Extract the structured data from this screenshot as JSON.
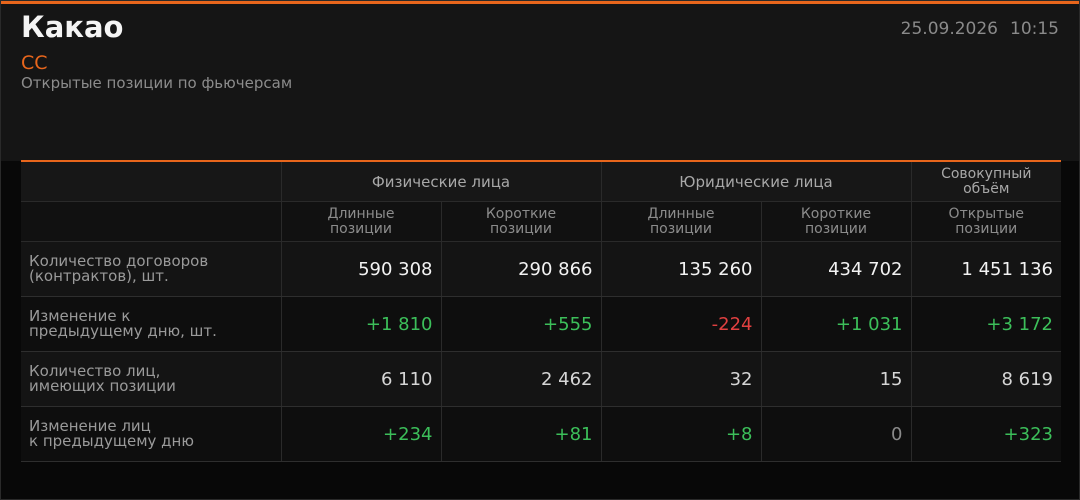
{
  "header": {
    "title": "Какао",
    "code": "CC",
    "subtitle": "Открытые позиции по фьючерсам",
    "date": "25.09.2026",
    "time": "10:15"
  },
  "table": {
    "groups": [
      {
        "label": [
          "Физические лица"
        ],
        "span": 2
      },
      {
        "label": [
          "Юридические лица"
        ],
        "span": 2
      },
      {
        "label": [
          "Совокупный",
          "объём"
        ],
        "span": 1
      }
    ],
    "columns": [
      [
        "Длинные",
        "позиции"
      ],
      [
        "Короткие",
        "позиции"
      ],
      [
        "Длинные",
        "позиции"
      ],
      [
        "Короткие",
        "позиции"
      ],
      [
        "Открытые",
        "позиции"
      ]
    ],
    "rows": [
      {
        "label": [
          "Количество договоров",
          "(контрактов), шт."
        ],
        "change": false,
        "cells": [
          "590 308",
          "290 866",
          "135 260",
          "434 702",
          "1 451 136"
        ]
      },
      {
        "label": [
          "Изменение к",
          "предыдущему дню, шт."
        ],
        "change": true,
        "cells": [
          "+1 810",
          "+555",
          "-224",
          "+1 031",
          "+3 172"
        ]
      },
      {
        "label": [
          "Количество лиц,",
          "имеющих позиции"
        ],
        "change": false,
        "cells": [
          "6 110",
          "2 462",
          "32",
          "15",
          "8 619"
        ]
      },
      {
        "label": [
          "Изменение лиц",
          "к предыдущему дню"
        ],
        "change": true,
        "cells": [
          "+234",
          "+81",
          "+8",
          "0",
          "+323"
        ]
      }
    ]
  }
}
